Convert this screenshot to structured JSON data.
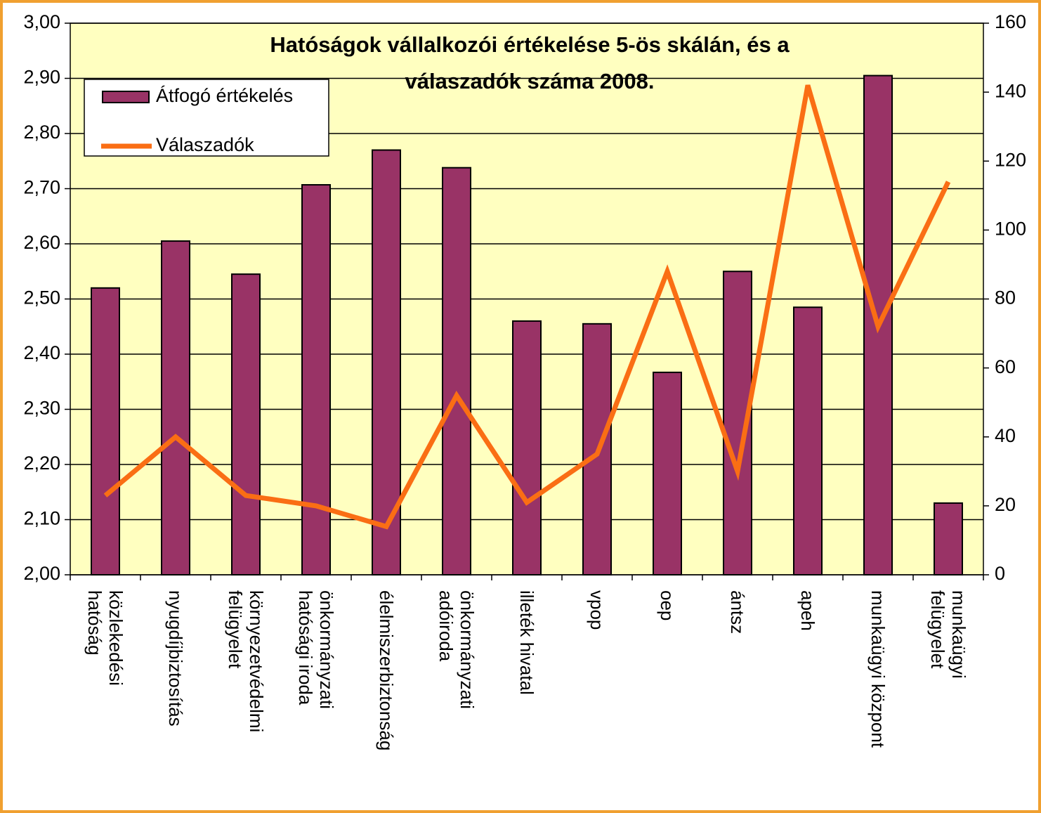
{
  "chart_data": {
    "type": "bar",
    "title": "Hatóságok vállalkozói értékelése 5-ös skálán, és a\nválaszadók száma 2008.",
    "categories": [
      "közlekedési\nhatóság",
      "nyugdíjbiztosítás",
      "környezetvédelmi\nfelügyelet",
      "önkormányzati\nhatósági iroda",
      "élelmiszerbiztonság",
      "önkormányzati\nadóiroda",
      "illeték hivatal",
      "vpop",
      "oep",
      "ántsz",
      "apeh",
      "munkaügyi központ",
      "munkaügyi\nfelügyelet"
    ],
    "series": [
      {
        "name": "Átfogó értékelés",
        "type": "bar",
        "color": "#993366",
        "values": [
          2.52,
          2.605,
          2.545,
          2.707,
          2.77,
          2.738,
          2.46,
          2.455,
          2.367,
          2.55,
          2.485,
          2.905,
          2.13
        ]
      },
      {
        "name": "Válaszadók",
        "type": "line",
        "axis": "y2",
        "color": "#fa6e14",
        "values": [
          23,
          40,
          23,
          20,
          14,
          52,
          21,
          35,
          88,
          30,
          142,
          72,
          114
        ]
      }
    ],
    "ylim": [
      2,
      3
    ],
    "yticks": [
      {
        "value": 2,
        "label": "2,00"
      },
      {
        "value": 2.1,
        "label": "2,10"
      },
      {
        "value": 2.2,
        "label": "2,20"
      },
      {
        "value": 2.3,
        "label": "2,30"
      },
      {
        "value": 2.4,
        "label": "2,40"
      },
      {
        "value": 2.5,
        "label": "2,50"
      },
      {
        "value": 2.6,
        "label": "2,60"
      },
      {
        "value": 2.7,
        "label": "2,70"
      },
      {
        "value": 2.8,
        "label": "2,80"
      },
      {
        "value": 2.9,
        "label": "2,90"
      },
      {
        "value": 3,
        "label": "3,00"
      }
    ],
    "y2lim": [
      0,
      160
    ],
    "y2ticks": [
      0,
      20,
      40,
      60,
      80,
      100,
      120,
      140,
      160
    ],
    "grid": true,
    "legend": "top-left",
    "plot_background": "#ffffc0"
  }
}
